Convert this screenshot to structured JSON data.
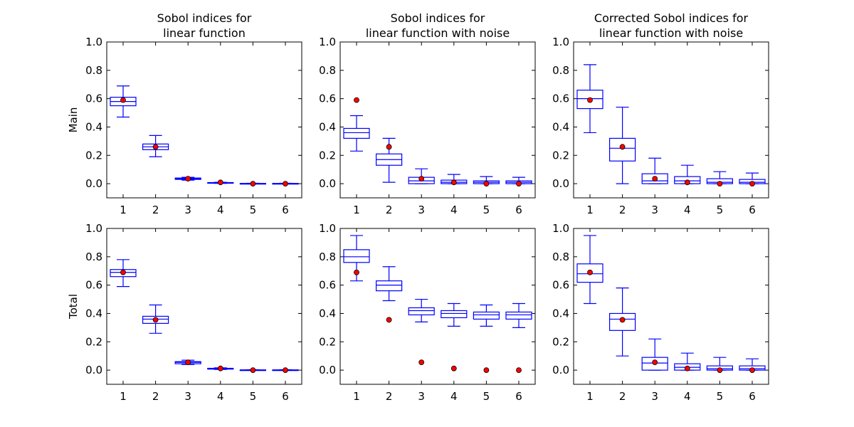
{
  "chart_data": [
    {
      "type": "box",
      "title_lines": [
        "Sobol indices for",
        "linear function"
      ],
      "ylabel": "Main",
      "ylim": [
        -0.1,
        1.0
      ],
      "yticks": [
        "0.0",
        "0.2",
        "0.4",
        "0.6",
        "0.8",
        "1.0"
      ],
      "categories": [
        "1",
        "2",
        "3",
        "4",
        "5",
        "6"
      ],
      "boxes": [
        {
          "whislo": 0.47,
          "q1": 0.55,
          "med": 0.58,
          "q3": 0.61,
          "whishi": 0.69
        },
        {
          "whislo": 0.19,
          "q1": 0.24,
          "med": 0.26,
          "q3": 0.28,
          "whishi": 0.34
        },
        {
          "whislo": 0.025,
          "q1": 0.03,
          "med": 0.035,
          "q3": 0.04,
          "whishi": 0.045
        },
        {
          "whislo": 0.002,
          "q1": 0.004,
          "med": 0.006,
          "q3": 0.008,
          "whishi": 0.01
        },
        {
          "whislo": 0.0,
          "q1": 0.0,
          "med": 0.0,
          "q3": 0.002,
          "whishi": 0.003
        },
        {
          "whislo": 0.0,
          "q1": 0.0,
          "med": 0.0,
          "q3": 0.002,
          "whishi": 0.003
        }
      ],
      "reference_points": [
        0.59,
        0.26,
        0.035,
        0.009,
        0.0,
        0.0
      ],
      "box_color": "#0000ff",
      "point_color": "#ff0000"
    },
    {
      "type": "box",
      "title_lines": [
        "Sobol indices for",
        "linear function with noise"
      ],
      "ylabel": "",
      "ylim": [
        -0.1,
        1.0
      ],
      "yticks": [
        "0.0",
        "0.2",
        "0.4",
        "0.6",
        "0.8",
        "1.0"
      ],
      "categories": [
        "1",
        "2",
        "3",
        "4",
        "5",
        "6"
      ],
      "boxes": [
        {
          "whislo": 0.23,
          "q1": 0.32,
          "med": 0.36,
          "q3": 0.39,
          "whishi": 0.48
        },
        {
          "whislo": 0.01,
          "q1": 0.13,
          "med": 0.17,
          "q3": 0.21,
          "whishi": 0.32
        },
        {
          "whislo": 0.0,
          "q1": 0.0,
          "med": 0.02,
          "q3": 0.045,
          "whishi": 0.105
        },
        {
          "whislo": 0.0,
          "q1": 0.0,
          "med": 0.01,
          "q3": 0.025,
          "whishi": 0.065
        },
        {
          "whislo": 0.0,
          "q1": 0.0,
          "med": 0.01,
          "q3": 0.02,
          "whishi": 0.05
        },
        {
          "whislo": 0.0,
          "q1": 0.0,
          "med": 0.01,
          "q3": 0.02,
          "whishi": 0.045
        }
      ],
      "reference_points": [
        0.59,
        0.26,
        0.035,
        0.009,
        0.0,
        0.0
      ],
      "box_color": "#0000ff",
      "point_color": "#ff0000"
    },
    {
      "type": "box",
      "title_lines": [
        "Corrected Sobol indices for",
        "linear function with noise"
      ],
      "ylabel": "",
      "ylim": [
        -0.1,
        1.0
      ],
      "yticks": [
        "0.0",
        "0.2",
        "0.4",
        "0.6",
        "0.8",
        "1.0"
      ],
      "categories": [
        "1",
        "2",
        "3",
        "4",
        "5",
        "6"
      ],
      "boxes": [
        {
          "whislo": 0.36,
          "q1": 0.53,
          "med": 0.6,
          "q3": 0.66,
          "whishi": 0.84
        },
        {
          "whislo": 0.0,
          "q1": 0.16,
          "med": 0.25,
          "q3": 0.32,
          "whishi": 0.54
        },
        {
          "whislo": 0.0,
          "q1": 0.0,
          "med": 0.02,
          "q3": 0.07,
          "whishi": 0.18
        },
        {
          "whislo": 0.0,
          "q1": 0.0,
          "med": 0.02,
          "q3": 0.05,
          "whishi": 0.13
        },
        {
          "whislo": 0.0,
          "q1": 0.0,
          "med": 0.01,
          "q3": 0.035,
          "whishi": 0.085
        },
        {
          "whislo": 0.0,
          "q1": 0.0,
          "med": 0.01,
          "q3": 0.03,
          "whishi": 0.075
        }
      ],
      "reference_points": [
        0.59,
        0.26,
        0.035,
        0.009,
        0.0,
        0.0
      ],
      "box_color": "#0000ff",
      "point_color": "#ff0000"
    },
    {
      "type": "box",
      "title_lines": [],
      "ylabel": "Total",
      "ylim": [
        -0.1,
        1.0
      ],
      "yticks": [
        "0.0",
        "0.2",
        "0.4",
        "0.6",
        "0.8",
        "1.0"
      ],
      "categories": [
        "1",
        "2",
        "3",
        "4",
        "5",
        "6"
      ],
      "boxes": [
        {
          "whislo": 0.59,
          "q1": 0.66,
          "med": 0.69,
          "q3": 0.71,
          "whishi": 0.78
        },
        {
          "whislo": 0.26,
          "q1": 0.33,
          "med": 0.36,
          "q3": 0.38,
          "whishi": 0.46
        },
        {
          "whislo": 0.04,
          "q1": 0.045,
          "med": 0.055,
          "q3": 0.06,
          "whishi": 0.07
        },
        {
          "whislo": 0.005,
          "q1": 0.007,
          "med": 0.01,
          "q3": 0.013,
          "whishi": 0.016
        },
        {
          "whislo": 0.0,
          "q1": 0.0,
          "med": 0.0,
          "q3": 0.002,
          "whishi": 0.003
        },
        {
          "whislo": 0.0,
          "q1": 0.0,
          "med": 0.0,
          "q3": 0.002,
          "whishi": 0.003
        }
      ],
      "reference_points": [
        0.69,
        0.355,
        0.055,
        0.012,
        0.0,
        0.0
      ],
      "box_color": "#0000ff",
      "point_color": "#ff0000"
    },
    {
      "type": "box",
      "title_lines": [],
      "ylabel": "",
      "ylim": [
        -0.1,
        1.0
      ],
      "yticks": [
        "0.0",
        "0.2",
        "0.4",
        "0.6",
        "0.8",
        "1.0"
      ],
      "categories": [
        "1",
        "2",
        "3",
        "4",
        "5",
        "6"
      ],
      "boxes": [
        {
          "whislo": 0.63,
          "q1": 0.76,
          "med": 0.8,
          "q3": 0.85,
          "whishi": 0.95
        },
        {
          "whislo": 0.49,
          "q1": 0.56,
          "med": 0.6,
          "q3": 0.63,
          "whishi": 0.73
        },
        {
          "whislo": 0.34,
          "q1": 0.39,
          "med": 0.42,
          "q3": 0.44,
          "whishi": 0.5
        },
        {
          "whislo": 0.31,
          "q1": 0.37,
          "med": 0.4,
          "q3": 0.42,
          "whishi": 0.47
        },
        {
          "whislo": 0.31,
          "q1": 0.36,
          "med": 0.39,
          "q3": 0.41,
          "whishi": 0.46
        },
        {
          "whislo": 0.3,
          "q1": 0.36,
          "med": 0.39,
          "q3": 0.41,
          "whishi": 0.47
        }
      ],
      "reference_points": [
        0.69,
        0.355,
        0.055,
        0.012,
        0.0,
        0.0
      ],
      "box_color": "#0000ff",
      "point_color": "#ff0000"
    },
    {
      "type": "box",
      "title_lines": [],
      "ylabel": "",
      "ylim": [
        -0.1,
        1.0
      ],
      "yticks": [
        "0.0",
        "0.2",
        "0.4",
        "0.6",
        "0.8",
        "1.0"
      ],
      "categories": [
        "1",
        "2",
        "3",
        "4",
        "5",
        "6"
      ],
      "boxes": [
        {
          "whislo": 0.47,
          "q1": 0.62,
          "med": 0.68,
          "q3": 0.75,
          "whishi": 0.95
        },
        {
          "whislo": 0.1,
          "q1": 0.28,
          "med": 0.36,
          "q3": 0.4,
          "whishi": 0.58
        },
        {
          "whislo": 0.0,
          "q1": 0.0,
          "med": 0.05,
          "q3": 0.09,
          "whishi": 0.22
        },
        {
          "whislo": 0.0,
          "q1": 0.0,
          "med": 0.02,
          "q3": 0.045,
          "whishi": 0.12
        },
        {
          "whislo": 0.0,
          "q1": 0.0,
          "med": 0.01,
          "q3": 0.03,
          "whishi": 0.09
        },
        {
          "whislo": 0.0,
          "q1": 0.0,
          "med": 0.01,
          "q3": 0.03,
          "whishi": 0.08
        }
      ],
      "reference_points": [
        0.69,
        0.355,
        0.055,
        0.012,
        0.0,
        0.0
      ],
      "box_color": "#0000ff",
      "point_color": "#ff0000"
    }
  ]
}
